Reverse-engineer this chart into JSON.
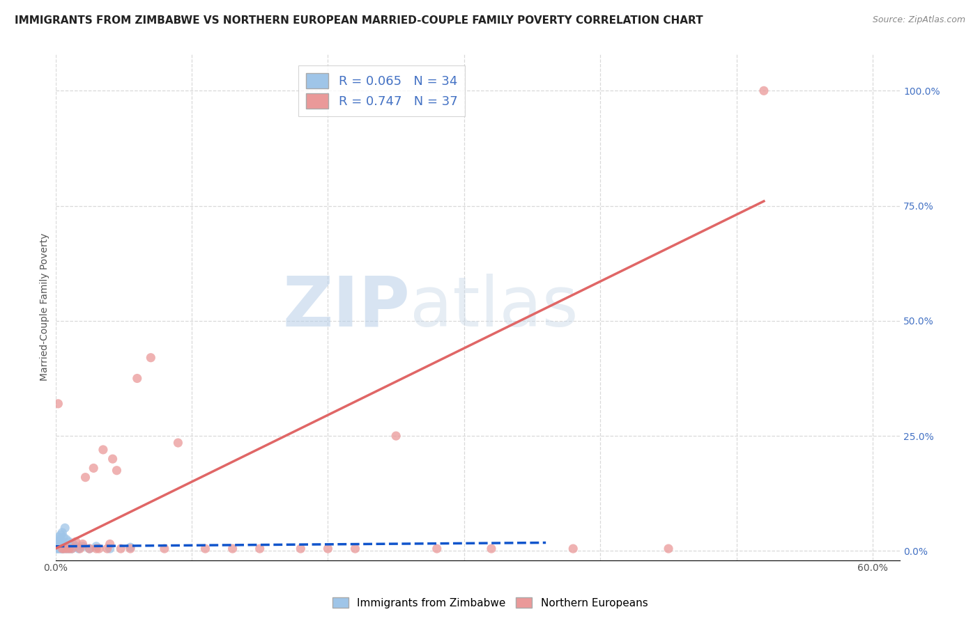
{
  "title": "IMMIGRANTS FROM ZIMBABWE VS NORTHERN EUROPEAN MARRIED-COUPLE FAMILY POVERTY CORRELATION CHART",
  "source": "Source: ZipAtlas.com",
  "ylabel": "Married-Couple Family Poverty",
  "xlim": [
    0.0,
    0.62
  ],
  "ylim": [
    -0.02,
    1.08
  ],
  "xticks": [
    0.0,
    0.6
  ],
  "xticklabels": [
    "0.0%",
    "60.0%"
  ],
  "yticks_right": [
    0.0,
    0.25,
    0.5,
    0.75,
    1.0
  ],
  "yticklabels_right": [
    "0.0%",
    "25.0%",
    "50.0%",
    "75.0%",
    "100.0%"
  ],
  "blue_color": "#9fc5e8",
  "pink_color": "#ea9999",
  "blue_line_color": "#1155cc",
  "pink_line_color": "#e06666",
  "R_blue": 0.065,
  "N_blue": 34,
  "R_pink": 0.747,
  "N_pink": 37,
  "legend_label_blue": "Immigrants from Zimbabwe",
  "legend_label_pink": "Northern Europeans",
  "watermark_zip": "ZIP",
  "watermark_atlas": "atlas",
  "background_color": "#ffffff",
  "blue_scatter_x": [
    0.001,
    0.001,
    0.002,
    0.002,
    0.002,
    0.003,
    0.003,
    0.003,
    0.004,
    0.004,
    0.004,
    0.005,
    0.005,
    0.005,
    0.006,
    0.006,
    0.006,
    0.007,
    0.007,
    0.008,
    0.008,
    0.009,
    0.01,
    0.01,
    0.011,
    0.012,
    0.013,
    0.015,
    0.017,
    0.02,
    0.025,
    0.03,
    0.04,
    0.055
  ],
  "blue_scatter_y": [
    0.005,
    0.015,
    0.005,
    0.02,
    0.03,
    0.005,
    0.01,
    0.025,
    0.005,
    0.015,
    0.035,
    0.005,
    0.02,
    0.04,
    0.005,
    0.015,
    0.03,
    0.01,
    0.05,
    0.005,
    0.025,
    0.01,
    0.005,
    0.02,
    0.01,
    0.005,
    0.015,
    0.01,
    0.005,
    0.01,
    0.005,
    0.01,
    0.005,
    0.008
  ],
  "blue_trend_x": [
    0.0,
    0.36
  ],
  "blue_trend_y": [
    0.01,
    0.018
  ],
  "pink_scatter_x": [
    0.002,
    0.005,
    0.006,
    0.008,
    0.01,
    0.012,
    0.015,
    0.018,
    0.02,
    0.022,
    0.025,
    0.028,
    0.03,
    0.032,
    0.035,
    0.038,
    0.04,
    0.042,
    0.045,
    0.048,
    0.055,
    0.06,
    0.07,
    0.08,
    0.09,
    0.11,
    0.13,
    0.15,
    0.18,
    0.2,
    0.22,
    0.25,
    0.28,
    0.32,
    0.38,
    0.45,
    0.52
  ],
  "pink_scatter_y": [
    0.32,
    0.005,
    0.005,
    0.005,
    0.005,
    0.005,
    0.02,
    0.005,
    0.015,
    0.16,
    0.005,
    0.18,
    0.005,
    0.005,
    0.22,
    0.005,
    0.015,
    0.2,
    0.175,
    0.005,
    0.005,
    0.375,
    0.42,
    0.005,
    0.235,
    0.005,
    0.005,
    0.005,
    0.005,
    0.005,
    0.005,
    0.25,
    0.005,
    0.005,
    0.005,
    0.005,
    1.0
  ],
  "pink_trend_x": [
    0.0,
    0.52
  ],
  "pink_trend_y": [
    0.005,
    0.76
  ],
  "grid_color": "#d9d9d9",
  "title_fontsize": 11,
  "axis_label_fontsize": 10,
  "tick_fontsize": 10
}
